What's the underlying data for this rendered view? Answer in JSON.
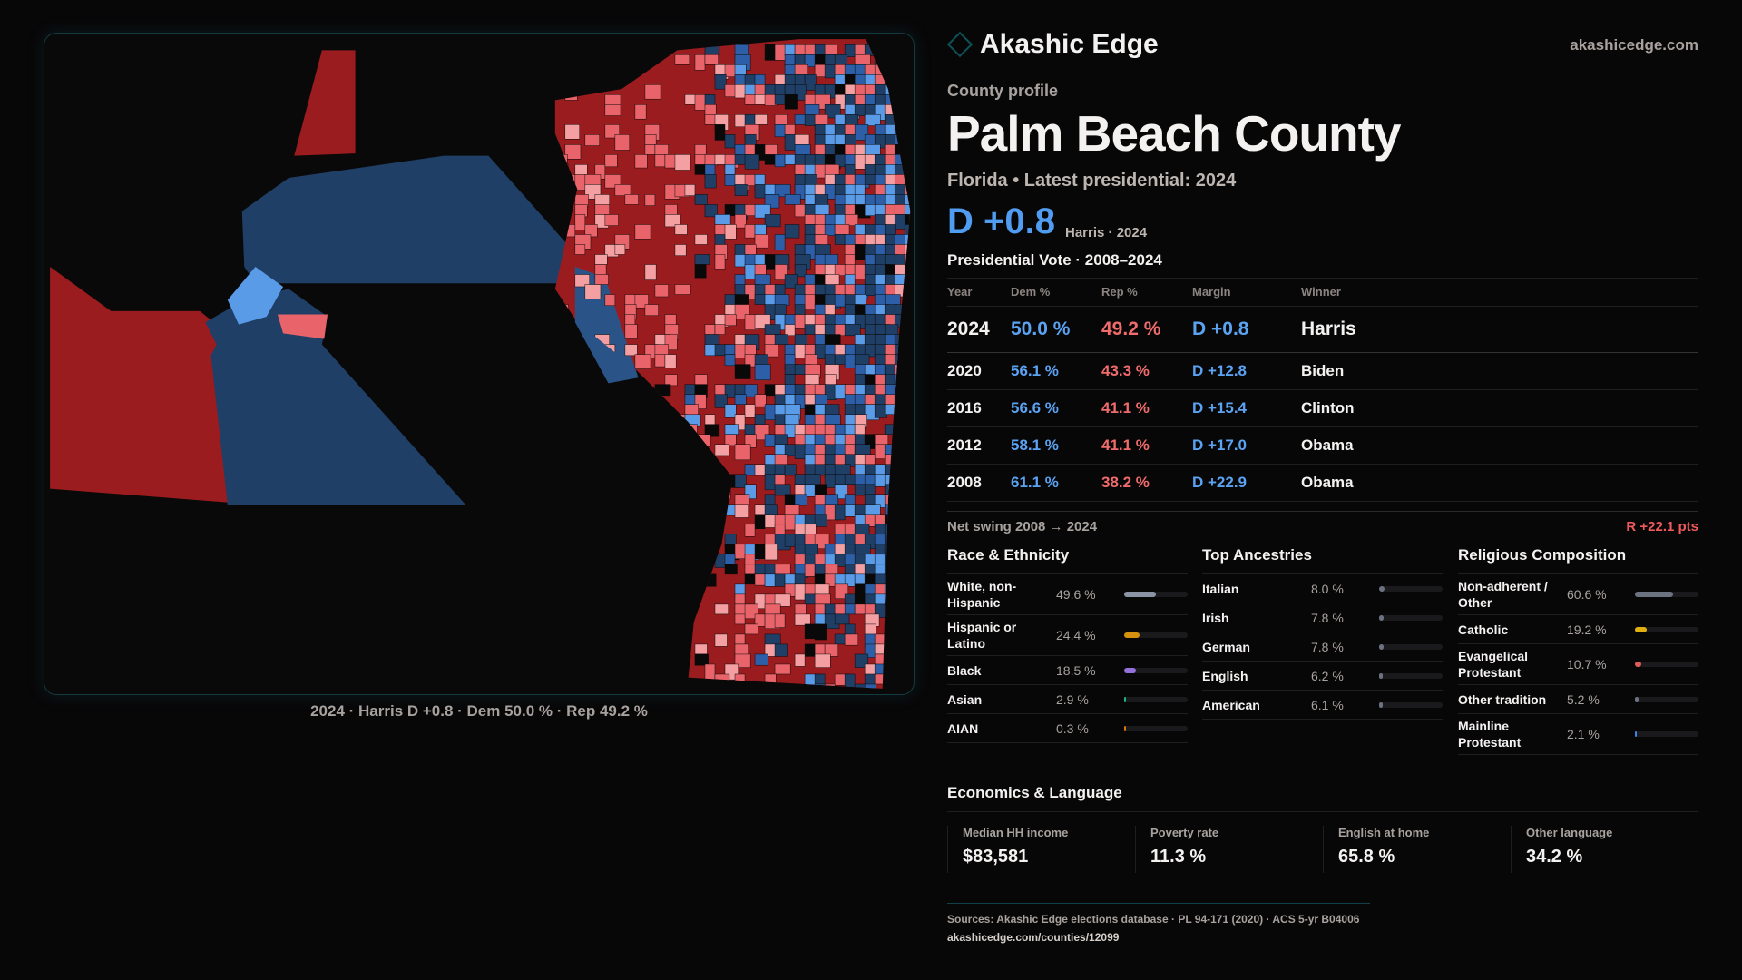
{
  "map": {
    "caption": "2024 · Harris D +0.8 · Dem 50.0 % · Rep 49.2 %",
    "colors": {
      "strong_rep": "#9b1c1f",
      "lean_rep": "#e8646a",
      "tilt_rep": "#f4a0a3",
      "strong_dem": "#1f3f66",
      "lean_dem": "#2d5fa8",
      "tilt_dem": "#5a9be8"
    }
  },
  "header": {
    "brand": "Akashic Edge",
    "brand_icon": "diamond-icon",
    "site": "akashicedge.com"
  },
  "profile": {
    "kicker": "County profile",
    "title": "Palm Beach County",
    "subtitle": "Florida • Latest presidential: 2024",
    "margin": "D +0.8",
    "margin_note": "Harris · 2024"
  },
  "vote": {
    "title": "Presidential Vote · 2008–2024",
    "headers": [
      "Year",
      "Dem %",
      "Rep %",
      "Margin",
      "Winner"
    ],
    "rows": [
      {
        "year": "2024",
        "dem": "50.0 %",
        "rep": "49.2 %",
        "margin": "D +0.8",
        "winner": "Harris"
      },
      {
        "year": "2020",
        "dem": "56.1 %",
        "rep": "43.3 %",
        "margin": "D +12.8",
        "winner": "Biden"
      },
      {
        "year": "2016",
        "dem": "56.6 %",
        "rep": "41.1 %",
        "margin": "D +15.4",
        "winner": "Clinton"
      },
      {
        "year": "2012",
        "dem": "58.1 %",
        "rep": "41.1 %",
        "margin": "D +17.0",
        "winner": "Obama"
      },
      {
        "year": "2008",
        "dem": "61.1 %",
        "rep": "38.2 %",
        "margin": "D +22.9",
        "winner": "Obama"
      }
    ],
    "swing_label": "Net swing 2008 → 2024",
    "swing_value": "R +22.1 pts"
  },
  "race": {
    "title": "Race & Ethnicity",
    "items": [
      {
        "label": "White, non-Hispanic",
        "pct": "49.6 %",
        "value": 49.6,
        "color": "#8a94a6"
      },
      {
        "label": "Hispanic or Latino",
        "pct": "24.4 %",
        "value": 24.4,
        "color": "#d4900f"
      },
      {
        "label": "Black",
        "pct": "18.5 %",
        "value": 18.5,
        "color": "#9370db"
      },
      {
        "label": "Asian",
        "pct": "2.9 %",
        "value": 2.9,
        "color": "#19b38a"
      },
      {
        "label": "AIAN",
        "pct": "0.3 %",
        "value": 0.3,
        "color": "#d97706"
      }
    ]
  },
  "ancestry": {
    "title": "Top Ancestries",
    "items": [
      {
        "label": "Italian",
        "pct": "8.0 %",
        "value": 8.0,
        "color": "#6b7280"
      },
      {
        "label": "Irish",
        "pct": "7.8 %",
        "value": 7.8,
        "color": "#6b7280"
      },
      {
        "label": "German",
        "pct": "7.8 %",
        "value": 7.8,
        "color": "#6b7280"
      },
      {
        "label": "English",
        "pct": "6.2 %",
        "value": 6.2,
        "color": "#6b7280"
      },
      {
        "label": "American",
        "pct": "6.1 %",
        "value": 6.1,
        "color": "#6b7280"
      }
    ]
  },
  "religion": {
    "title": "Religious Composition",
    "items": [
      {
        "label": "Non-adherent / Other",
        "pct": "60.6 %",
        "value": 60.6,
        "color": "#6b7280"
      },
      {
        "label": "Catholic",
        "pct": "19.2 %",
        "value": 19.2,
        "color": "#e0b00f"
      },
      {
        "label": "Evangelical Protestant",
        "pct": "10.7 %",
        "value": 10.7,
        "color": "#e05a5a"
      },
      {
        "label": "Other tradition",
        "pct": "5.2 %",
        "value": 5.2,
        "color": "#6b7280"
      },
      {
        "label": "Mainline Protestant",
        "pct": "2.1 %",
        "value": 2.1,
        "color": "#3b82f6"
      }
    ]
  },
  "economics": {
    "title": "Economics & Language",
    "cards": [
      {
        "label": "Median HH income",
        "value": "$83,581"
      },
      {
        "label": "Poverty rate",
        "value": "11.3 %"
      },
      {
        "label": "English at home",
        "value": "65.8 %"
      },
      {
        "label": "Other language",
        "value": "34.2 %"
      }
    ]
  },
  "footer": {
    "sources": "Sources: Akashic Edge elections database · PL 94-171 (2020) · ACS 5-yr B04006",
    "url": "akashicedge.com/counties/12099"
  }
}
